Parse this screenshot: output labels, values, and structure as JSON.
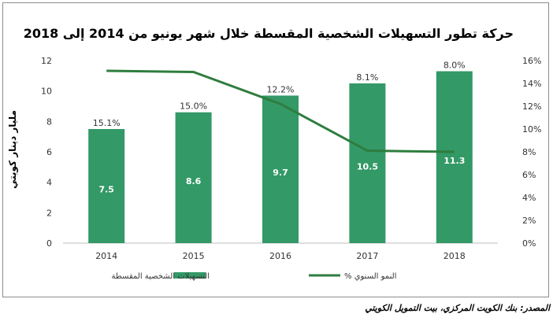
{
  "chart_data": {
    "type": "bar",
    "title": "حركة تطور التسهيلات الشخصية المقسطة خلال شهر يونيو من 2014 إلى 2018",
    "ylabel": "مليار دينار كويتي",
    "categories": [
      "2014",
      "2015",
      "2016",
      "2017",
      "2018"
    ],
    "ylim": [
      0,
      12
    ],
    "y2lim": [
      0,
      16
    ],
    "y_ticks": [
      "0",
      "2",
      "4",
      "6",
      "8",
      "10",
      "12"
    ],
    "y2_ticks": [
      "0%",
      "2%",
      "4%",
      "6%",
      "8%",
      "10%",
      "12%",
      "14%",
      "16%"
    ],
    "series": [
      {
        "name": "التسهيلات الشخصية المقسطة",
        "type": "bar",
        "values": [
          7.5,
          8.6,
          9.7,
          10.5,
          11.3
        ],
        "labels": [
          "7.5",
          "8.6",
          "9.7",
          "10.5",
          "11.3"
        ],
        "color": "#339966"
      },
      {
        "name": "% النمو السنوي",
        "type": "line",
        "axis": "right",
        "values": [
          15.1,
          15.0,
          12.2,
          8.1,
          8.0
        ],
        "labels": [
          "15.1%",
          "15.0%",
          "12.2%",
          "8.1%",
          "8.0%"
        ],
        "color": "#2e7d3e"
      }
    ],
    "legend_position": "bottom",
    "grid": false
  },
  "source": "المصدر: بنك الكويت المركزي، بيت التمويل الكويتي"
}
